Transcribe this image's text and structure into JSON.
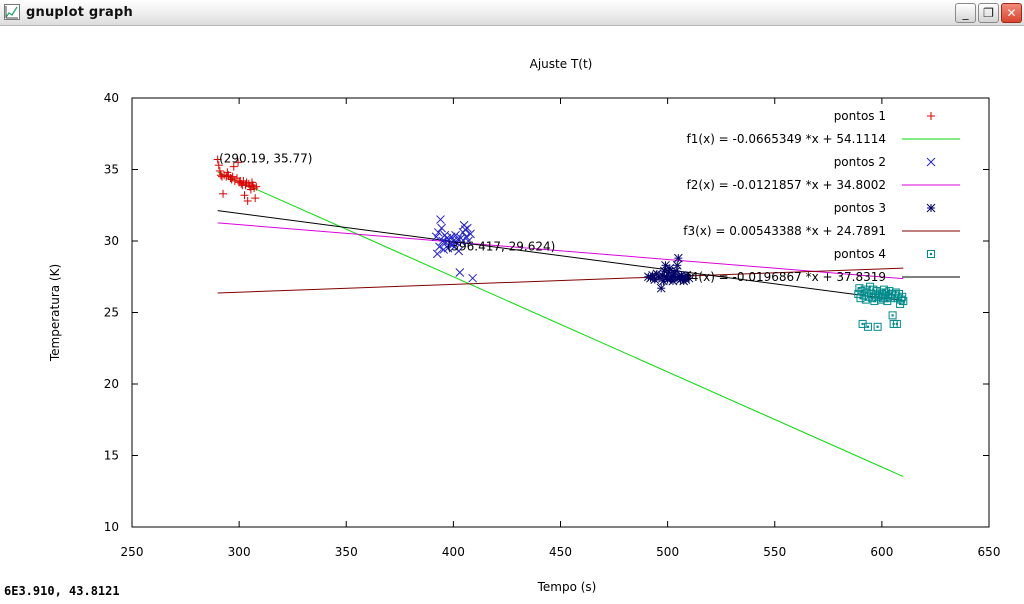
{
  "window": {
    "title": "gnuplot graph",
    "minimize_label": "_",
    "maximize_label": "❐",
    "close_label": "✕"
  },
  "status_readout": "6E3.910, 43.8121",
  "colors": {
    "pontos1": "#dd0000",
    "f1": "#00dd00",
    "pontos2": "#2020cc",
    "f2": "#dd00dd",
    "pontos3": "#000066",
    "f3": "#800000",
    "pontos4": "#008b8b",
    "f4": "#000000"
  },
  "chart_data": {
    "type": "scatter",
    "title": "Ajuste T(t)",
    "xlabel": "Tempo (s)",
    "ylabel": "Temperatura (K)",
    "xlim": [
      250,
      650
    ],
    "ylim": [
      10,
      40
    ],
    "xticks": [
      250,
      300,
      350,
      400,
      450,
      500,
      550,
      600,
      650
    ],
    "yticks": [
      10,
      15,
      20,
      25,
      30,
      35,
      40
    ],
    "grid": false,
    "legend_position": "top-right",
    "series": [
      {
        "name": "pontos 1",
        "kind": "points",
        "marker": "plus",
        "color": "#dd0000",
        "points": [
          [
            290,
            35.7
          ],
          [
            290.5,
            35.3
          ],
          [
            291,
            34.9
          ],
          [
            291.5,
            34.6
          ],
          [
            292,
            34.5
          ],
          [
            292.5,
            33.3
          ],
          [
            293,
            34.6
          ],
          [
            294,
            34.5
          ],
          [
            294.5,
            34.8
          ],
          [
            295,
            34.6
          ],
          [
            296,
            34.4
          ],
          [
            296.5,
            34.3
          ],
          [
            297,
            34.5
          ],
          [
            297.5,
            35.2
          ],
          [
            298,
            34.2
          ],
          [
            299,
            34.4
          ],
          [
            299.5,
            35.5
          ],
          [
            300,
            34.1
          ],
          [
            300.5,
            34.2
          ],
          [
            301,
            34.0
          ],
          [
            301.5,
            33.9
          ],
          [
            302,
            34.2
          ],
          [
            302.5,
            33.2
          ],
          [
            303,
            33.9
          ],
          [
            303.5,
            34.1
          ],
          [
            304,
            32.8
          ],
          [
            304.5,
            34.0
          ],
          [
            305,
            33.8
          ],
          [
            305.5,
            33.6
          ],
          [
            306,
            34.1
          ],
          [
            306.5,
            33.9
          ],
          [
            307,
            33.7
          ],
          [
            307.5,
            33.0
          ],
          [
            308,
            33.8
          ]
        ]
      },
      {
        "name": "f1(x) = -0.0665349 *x + 54.1114",
        "kind": "line",
        "color": "#00dd00",
        "slope": -0.0665349,
        "intercept": 54.1114,
        "xrange": [
          290,
          610
        ]
      },
      {
        "name": "pontos 2",
        "kind": "points",
        "marker": "cross",
        "color": "#2020cc",
        "points": [
          [
            392,
            30.3
          ],
          [
            392.5,
            29.1
          ],
          [
            393,
            30.6
          ],
          [
            393.5,
            29.6
          ],
          [
            394,
            31.5
          ],
          [
            394.5,
            30.9
          ],
          [
            395,
            30.0
          ],
          [
            395.5,
            29.4
          ],
          [
            396,
            30.4
          ],
          [
            396.5,
            29.9
          ],
          [
            397,
            30.2
          ],
          [
            397.5,
            29.5
          ],
          [
            398,
            30.1
          ],
          [
            398.5,
            29.8
          ],
          [
            399,
            30.3
          ],
          [
            399.5,
            29.7
          ],
          [
            400,
            30.0
          ],
          [
            400.5,
            29.6
          ],
          [
            401,
            30.4
          ],
          [
            401.5,
            29.9
          ],
          [
            402,
            30.1
          ],
          [
            402.5,
            29.3
          ],
          [
            403,
            27.8
          ],
          [
            403.5,
            30.2
          ],
          [
            404,
            29.9
          ],
          [
            404.5,
            30.6
          ],
          [
            405,
            31.1
          ],
          [
            405.5,
            30.8
          ],
          [
            406,
            30.3
          ],
          [
            406.5,
            30.9
          ],
          [
            407,
            30.0
          ],
          [
            408,
            30.5
          ],
          [
            409,
            27.4
          ]
        ]
      },
      {
        "name": "f2(x) = -0.0121857 *x + 34.8002",
        "kind": "line",
        "color": "#dd00dd",
        "slope": -0.0121857,
        "intercept": 34.8002,
        "xrange": [
          290,
          610
        ]
      },
      {
        "name": "pontos 3",
        "kind": "points",
        "marker": "star",
        "color": "#000066",
        "points": [
          [
            491,
            27.5
          ],
          [
            492,
            27.4
          ],
          [
            493,
            27.6
          ],
          [
            494,
            27.3
          ],
          [
            495,
            27.7
          ],
          [
            496,
            27.4
          ],
          [
            497,
            26.7
          ],
          [
            497.5,
            27.6
          ],
          [
            498,
            27.2
          ],
          [
            498.5,
            27.9
          ],
          [
            499,
            28.3
          ],
          [
            499.5,
            27.5
          ],
          [
            500,
            27.3
          ],
          [
            500.5,
            27.8
          ],
          [
            501,
            28.1
          ],
          [
            501.5,
            27.4
          ],
          [
            502,
            27.6
          ],
          [
            502.5,
            27.2
          ],
          [
            503,
            27.7
          ],
          [
            503.5,
            27.4
          ],
          [
            504,
            27.9
          ],
          [
            504.5,
            28.3
          ],
          [
            505,
            28.8
          ],
          [
            505.5,
            27.5
          ],
          [
            506,
            27.3
          ],
          [
            506.5,
            27.6
          ],
          [
            507,
            27.4
          ],
          [
            507.5,
            27.2
          ],
          [
            508,
            27.5
          ],
          [
            508.5,
            27.3
          ],
          [
            509,
            27.6
          ],
          [
            510,
            27.4
          ]
        ]
      },
      {
        "name": "f3(x) = 0.00543388 *x + 24.7891",
        "kind": "line",
        "color": "#800000",
        "slope": 0.00543388,
        "intercept": 24.7891,
        "xrange": [
          290,
          610
        ]
      },
      {
        "name": "pontos 4",
        "kind": "points",
        "marker": "dotsquare",
        "color": "#008b8b",
        "points": [
          [
            589,
            26.3
          ],
          [
            589.5,
            26.7
          ],
          [
            590,
            26.0
          ],
          [
            590.5,
            26.5
          ],
          [
            591,
            24.2
          ],
          [
            591.5,
            26.2
          ],
          [
            592,
            26.6
          ],
          [
            592.5,
            25.9
          ],
          [
            593,
            26.4
          ],
          [
            593.5,
            24.0
          ],
          [
            594,
            26.1
          ],
          [
            594.5,
            26.8
          ],
          [
            595,
            26.3
          ],
          [
            595.5,
            26.0
          ],
          [
            596,
            26.6
          ],
          [
            596.5,
            25.8
          ],
          [
            597,
            26.2
          ],
          [
            597.5,
            26.5
          ],
          [
            598,
            24.0
          ],
          [
            598.5,
            26.1
          ],
          [
            599,
            26.4
          ],
          [
            599.5,
            25.9
          ],
          [
            600,
            26.3
          ],
          [
            600.5,
            26.0
          ],
          [
            601,
            26.6
          ],
          [
            601.5,
            26.2
          ],
          [
            602,
            26.4
          ],
          [
            602.5,
            25.8
          ],
          [
            603,
            26.1
          ],
          [
            603.5,
            26.5
          ],
          [
            604,
            26.0
          ],
          [
            604.5,
            26.3
          ],
          [
            605,
            24.8
          ],
          [
            605.5,
            24.2
          ],
          [
            606,
            26.2
          ],
          [
            606.5,
            26.4
          ],
          [
            607,
            24.2
          ],
          [
            607.5,
            26.0
          ],
          [
            608,
            26.3
          ],
          [
            608.5,
            25.6
          ],
          [
            609,
            25.9
          ],
          [
            609.5,
            26.1
          ],
          [
            610,
            25.8
          ]
        ]
      },
      {
        "name": "f4(x) = -0.0196867 *x + 37.8319",
        "kind": "line",
        "color": "#000000",
        "slope": -0.0196867,
        "intercept": 37.8319,
        "xrange": [
          290,
          610
        ]
      }
    ],
    "annotations": [
      {
        "text": "(290.19, 35.77)",
        "x": 290.19,
        "y": 35.77
      },
      {
        "text": "(396.417, 29.624)",
        "x": 396.417,
        "y": 29.624
      }
    ]
  }
}
